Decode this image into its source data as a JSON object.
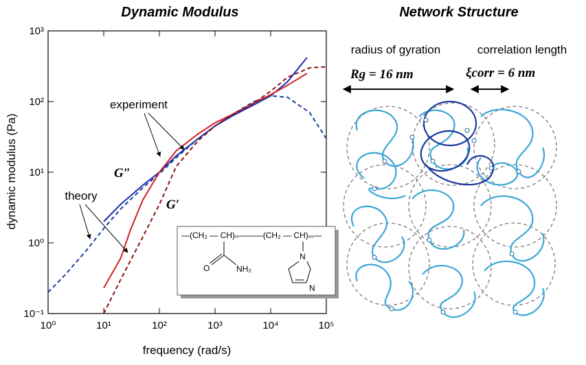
{
  "chart_data": {
    "type": "line",
    "title": "Dynamic Modulus",
    "xlabel": "frequency (rad/s)",
    "ylabel": "dynamic modulus (Pa)",
    "xscale": "log",
    "yscale": "log",
    "xlim": [
      1,
      100000
    ],
    "ylim": [
      0.1,
      1000
    ],
    "xticks": [
      {
        "value": 1,
        "label": "10⁰"
      },
      {
        "value": 10,
        "label": "10¹"
      },
      {
        "value": 100,
        "label": "10²"
      },
      {
        "value": 1000,
        "label": "10³"
      },
      {
        "value": 10000,
        "label": "10⁴"
      },
      {
        "value": 100000,
        "label": "10⁵"
      }
    ],
    "yticks": [
      {
        "value": 0.1,
        "label": "10⁻¹"
      },
      {
        "value": 1,
        "label": "10⁰"
      },
      {
        "value": 10,
        "label": "10¹"
      },
      {
        "value": 100,
        "label": "10²"
      },
      {
        "value": 1000,
        "label": "10³"
      }
    ],
    "series": [
      {
        "color": "#1a2fb0",
        "dash": false,
        "x": [
          10,
          20,
          50,
          100,
          200,
          500,
          1000,
          2000,
          5000,
          10000,
          20000,
          45000
        ],
        "values": [
          2.0,
          3.5,
          6.5,
          10,
          17,
          30,
          45,
          62,
          90,
          120,
          190,
          420
        ]
      },
      {
        "color": "#1a3fa0",
        "dash": true,
        "x": [
          1,
          2,
          5,
          10,
          20,
          50,
          100,
          200,
          500,
          1000,
          2000,
          5000,
          10000,
          20000,
          50000,
          100000
        ],
        "values": [
          0.2,
          0.35,
          0.8,
          1.6,
          3.0,
          6.0,
          9.5,
          16,
          30,
          45,
          65,
          100,
          120,
          115,
          70,
          30
        ]
      },
      {
        "color": "#d42020",
        "dash": false,
        "x": [
          10,
          20,
          30,
          50,
          100,
          200,
          500,
          1000,
          2000,
          5000,
          10000,
          20000,
          45000
        ],
        "values": [
          0.23,
          0.6,
          1.5,
          4,
          10,
          20,
          35,
          50,
          65,
          95,
          125,
          170,
          250
        ]
      },
      {
        "color": "#8b1010",
        "dash": true,
        "x": [
          10,
          20,
          50,
          100,
          200,
          500,
          1000,
          2000,
          5000,
          10000,
          20000,
          50000,
          100000
        ],
        "values": [
          0.1,
          0.3,
          1.2,
          3.5,
          12,
          28,
          45,
          65,
          95,
          140,
          220,
          300,
          310
        ]
      }
    ],
    "annotations": [
      "experiment",
      "theory",
      "G″",
      "G′"
    ]
  },
  "inset": {
    "chain": "—(CH₂ — CH)ₙ———(CH₂ — CH)ₘ—",
    "o": "O",
    "nh2": "NH₂",
    "n1": "N",
    "n2": "N"
  },
  "network": {
    "title": "Network Structure",
    "gyration": "radius of gyration",
    "correlation": "correlation length",
    "rg": "Rg = 16 nm",
    "xi": "ξcorr = 6 nm"
  }
}
